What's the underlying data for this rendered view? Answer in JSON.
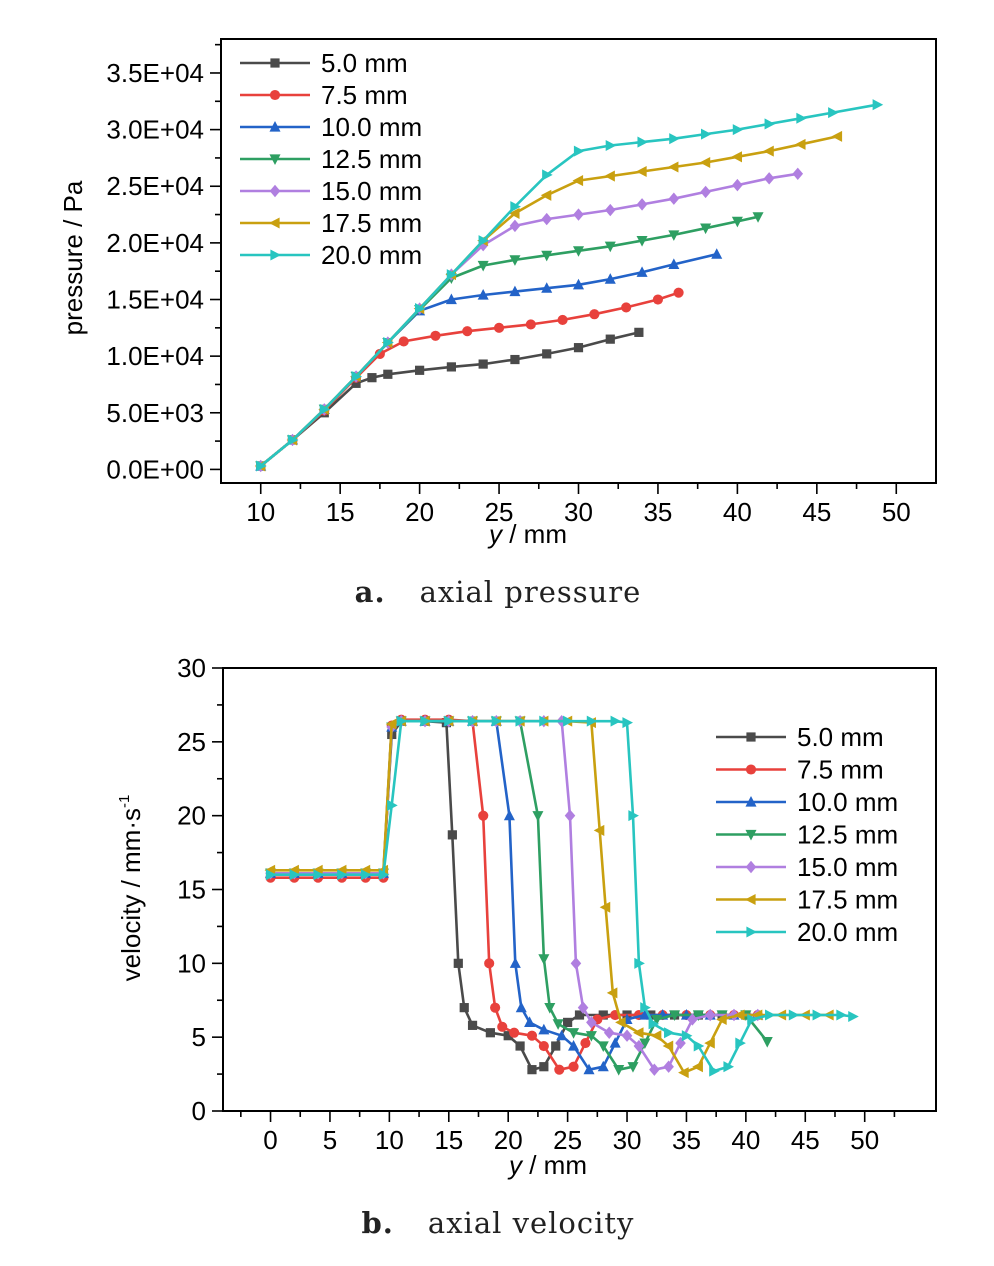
{
  "colors": [
    "#4a4a4a",
    "#e8413c",
    "#2363c8",
    "#2e9f62",
    "#b07fe0",
    "#c9a010",
    "#28c5c0"
  ],
  "legend_labels": [
    "5.0 mm",
    "7.5 mm",
    "10.0 mm",
    "12.5 mm",
    "15.0 mm",
    "17.5 mm",
    "20.0 mm"
  ],
  "captions": {
    "a": {
      "letter": "a.",
      "text": "axial pressure"
    },
    "b": {
      "letter": "b.",
      "text": "axial velocity"
    }
  },
  "chart_data": [
    {
      "type": "line",
      "xlabel_italic": "y",
      "xlabel_rest": " / mm",
      "ylabel": "pressure / Pa",
      "xlim": [
        7.5,
        52.5
      ],
      "ylim": [
        -1200,
        38000
      ],
      "xticks": [
        10,
        15,
        20,
        25,
        30,
        35,
        40,
        45,
        50
      ],
      "xtick_labels": [
        "10",
        "15",
        "20",
        "25",
        "30",
        "35",
        "40",
        "45",
        "50"
      ],
      "yticks": [
        0,
        5000,
        10000,
        15000,
        20000,
        25000,
        30000,
        35000
      ],
      "ytick_labels": [
        "0.0E+00",
        "5.0E+03",
        "1.0E+04",
        "1.5E+04",
        "2.0E+04",
        "2.5E+04",
        "3.0E+04",
        "3.5E+04"
      ],
      "legend_position": "top-left",
      "series": [
        {
          "name": "5.0 mm",
          "marker": "square",
          "x": [
            10,
            12,
            14,
            16,
            17,
            18,
            20,
            22,
            24,
            26,
            28,
            30,
            32,
            33.8
          ],
          "y": [
            300,
            2600,
            5000,
            7600,
            8100,
            8400,
            8750,
            9050,
            9300,
            9700,
            10200,
            10750,
            11500,
            12100
          ]
        },
        {
          "name": "7.5 mm",
          "marker": "circle",
          "x": [
            10,
            12,
            14,
            16,
            17.5,
            19,
            21,
            23,
            25,
            27,
            29,
            31,
            33,
            35,
            36.3
          ],
          "y": [
            300,
            2600,
            5200,
            8100,
            10200,
            11300,
            11800,
            12200,
            12500,
            12800,
            13200,
            13700,
            14300,
            15000,
            15600
          ]
        },
        {
          "name": "10.0 mm",
          "marker": "triangle-up",
          "x": [
            10,
            12,
            14,
            16,
            18,
            20,
            22,
            24,
            26,
            28,
            30,
            32,
            34,
            36,
            38.7
          ],
          "y": [
            300,
            2600,
            5300,
            8200,
            11200,
            14000,
            15000,
            15400,
            15700,
            16000,
            16300,
            16800,
            17400,
            18100,
            19000
          ]
        },
        {
          "name": "12.5 mm",
          "marker": "triangle-down",
          "x": [
            10,
            12,
            14,
            16,
            18,
            20,
            22,
            24,
            26,
            28,
            30,
            32,
            34,
            36,
            38,
            40,
            41.3
          ],
          "y": [
            300,
            2600,
            5300,
            8200,
            11200,
            14100,
            16900,
            18000,
            18500,
            18900,
            19300,
            19700,
            20200,
            20700,
            21300,
            21900,
            22300
          ]
        },
        {
          "name": "15.0 mm",
          "marker": "diamond",
          "x": [
            10,
            12,
            14,
            16,
            18,
            20,
            22,
            24,
            26,
            28,
            30,
            32,
            34,
            36,
            38,
            40,
            42,
            43.8
          ],
          "y": [
            300,
            2600,
            5300,
            8200,
            11200,
            14200,
            17200,
            19800,
            21500,
            22100,
            22500,
            22900,
            23400,
            23900,
            24500,
            25100,
            25700,
            26100
          ]
        },
        {
          "name": "17.5 mm",
          "marker": "triangle-left",
          "x": [
            10,
            12,
            14,
            16,
            18,
            20,
            22,
            24,
            26,
            28,
            30,
            32,
            34,
            36,
            38,
            40,
            42,
            44,
            46.3
          ],
          "y": [
            300,
            2600,
            5300,
            8200,
            11200,
            14200,
            17200,
            20200,
            22600,
            24200,
            25500,
            25900,
            26300,
            26700,
            27100,
            27600,
            28100,
            28700,
            29400
          ]
        },
        {
          "name": "20.0 mm",
          "marker": "triangle-right",
          "x": [
            10,
            12,
            14,
            16,
            18,
            20,
            22,
            24,
            26,
            28,
            30,
            32,
            34,
            36,
            38,
            40,
            42,
            44,
            46,
            48.8
          ],
          "y": [
            300,
            2600,
            5300,
            8200,
            11200,
            14200,
            17200,
            20200,
            23200,
            26000,
            28100,
            28600,
            28900,
            29200,
            29600,
            30000,
            30500,
            31000,
            31500,
            32200
          ]
        }
      ]
    },
    {
      "type": "line",
      "xlabel_italic": "y",
      "xlabel_rest": " / mm",
      "ylabel": "velocity / mm·s",
      "ylabel_sup": "-1",
      "xlim": [
        -4,
        56
      ],
      "ylim": [
        0,
        30
      ],
      "xticks": [
        0,
        5,
        10,
        15,
        20,
        25,
        30,
        35,
        40,
        45,
        50
      ],
      "xtick_labels": [
        "0",
        "5",
        "10",
        "15",
        "20",
        "25",
        "30",
        "35",
        "40",
        "45",
        "50"
      ],
      "yticks": [
        0,
        5,
        10,
        15,
        20,
        25,
        30
      ],
      "ytick_labels": [
        "0",
        "5",
        "10",
        "15",
        "20",
        "25",
        "30"
      ],
      "legend_position": "right",
      "series": [
        {
          "name": "5.0 mm",
          "marker": "square",
          "x": [
            0,
            2,
            4,
            6,
            8,
            9.5,
            10.2,
            11,
            13,
            14.8,
            15.3,
            15.8,
            16.3,
            17,
            18.5,
            20,
            21,
            22,
            23,
            24,
            25,
            26,
            28,
            30,
            32,
            34,
            36,
            38,
            40
          ],
          "y": [
            16.1,
            16.1,
            16.1,
            16.1,
            16.1,
            16.1,
            25.5,
            26.4,
            26.4,
            26.3,
            18.7,
            10.0,
            7.0,
            5.8,
            5.3,
            5.1,
            4.4,
            2.8,
            3.0,
            4.4,
            6.0,
            6.5,
            6.5,
            6.5,
            6.5,
            6.5,
            6.5,
            6.5,
            6.5
          ]
        },
        {
          "name": "7.5 mm",
          "marker": "circle",
          "x": [
            0,
            2,
            4,
            6,
            8,
            9.5,
            10.2,
            11,
            13,
            15,
            17,
            17.9,
            18.4,
            18.9,
            19.5,
            20.5,
            22,
            23,
            24.3,
            25.5,
            26.5,
            27.5,
            29,
            31,
            33,
            35,
            37,
            39,
            41
          ],
          "y": [
            15.8,
            15.8,
            15.8,
            15.8,
            15.8,
            15.8,
            26.1,
            26.5,
            26.5,
            26.5,
            26.4,
            20.0,
            10.0,
            7.0,
            5.7,
            5.3,
            5.1,
            4.4,
            2.8,
            3.0,
            4.6,
            6.2,
            6.5,
            6.5,
            6.5,
            6.5,
            6.5,
            6.5,
            6.5
          ]
        },
        {
          "name": "10.0 mm",
          "marker": "triangle-up",
          "x": [
            0,
            2,
            4,
            6,
            8,
            9.5,
            10.2,
            11,
            13,
            15,
            17,
            19,
            20.1,
            20.6,
            21.1,
            21.8,
            23,
            24.5,
            25.5,
            26.8,
            28,
            29,
            30,
            31.5,
            33,
            35,
            37,
            39,
            41
          ],
          "y": [
            16.1,
            16.1,
            16.1,
            16.1,
            16.1,
            16.1,
            26.0,
            26.4,
            26.4,
            26.4,
            26.4,
            26.4,
            20.0,
            10.0,
            7.0,
            6.0,
            5.5,
            5.1,
            4.4,
            2.8,
            3.0,
            4.6,
            6.2,
            6.5,
            6.5,
            6.5,
            6.5,
            6.5,
            6.5
          ]
        },
        {
          "name": "12.5 mm",
          "marker": "triangle-down",
          "x": [
            0,
            2,
            4,
            6,
            8,
            9.5,
            10.2,
            11,
            13,
            15,
            17,
            19,
            21,
            22.5,
            23,
            23.5,
            24.2,
            25.5,
            27,
            28,
            29.3,
            30.5,
            31.5,
            32.5,
            34,
            36,
            38,
            40,
            41.8
          ],
          "y": [
            16.1,
            16.1,
            16.1,
            16.1,
            16.1,
            16.1,
            26.0,
            26.4,
            26.4,
            26.4,
            26.4,
            26.4,
            26.4,
            20.0,
            10.3,
            7.0,
            5.9,
            5.3,
            5.1,
            4.4,
            2.8,
            3.0,
            4.6,
            6.2,
            6.5,
            6.5,
            6.5,
            6.5,
            4.7
          ]
        },
        {
          "name": "15.0 mm",
          "marker": "diamond",
          "x": [
            0,
            2,
            4,
            6,
            8,
            9.5,
            10.2,
            11,
            13,
            15,
            17,
            19,
            21,
            23,
            24.5,
            25.2,
            25.7,
            26.3,
            27,
            28.5,
            30,
            31,
            32.3,
            33.5,
            34.5,
            35.5,
            37,
            39,
            41
          ],
          "y": [
            16.1,
            16.1,
            16.1,
            16.1,
            16.1,
            16.1,
            26.0,
            26.4,
            26.4,
            26.4,
            26.4,
            26.4,
            26.4,
            26.4,
            26.4,
            20.0,
            10.0,
            7.0,
            6.0,
            5.3,
            5.1,
            4.4,
            2.8,
            3.0,
            4.6,
            6.2,
            6.5,
            6.5,
            6.5
          ]
        },
        {
          "name": "17.5 mm",
          "marker": "triangle-left",
          "x": [
            0,
            2,
            4,
            6,
            8,
            9.5,
            10.2,
            11,
            13,
            15,
            17,
            19,
            21,
            23,
            25,
            27,
            27.7,
            28.2,
            28.8,
            29.5,
            31,
            32.5,
            33.5,
            34.8,
            36,
            37,
            38,
            39.5,
            41,
            43,
            45,
            47
          ],
          "y": [
            16.3,
            16.3,
            16.3,
            16.3,
            16.3,
            16.3,
            26.2,
            26.4,
            26.4,
            26.4,
            26.4,
            26.4,
            26.4,
            26.4,
            26.4,
            26.3,
            19.0,
            13.8,
            8.0,
            6.0,
            5.3,
            5.1,
            4.4,
            2.6,
            3.0,
            4.6,
            6.2,
            6.5,
            6.5,
            6.5,
            6.5,
            6.5
          ]
        },
        {
          "name": "20.0 mm",
          "marker": "triangle-right",
          "x": [
            0,
            2,
            4,
            6,
            8,
            9.5,
            10.2,
            11,
            13,
            15,
            17,
            19,
            21,
            23,
            25,
            27,
            29,
            30,
            30.5,
            31,
            31.5,
            32.2,
            33.5,
            35,
            36,
            37.3,
            38.5,
            39.5,
            40.5,
            42,
            44,
            46,
            48,
            49
          ],
          "y": [
            16.0,
            16.0,
            16.0,
            16.0,
            16.0,
            16.0,
            20.7,
            26.4,
            26.4,
            26.4,
            26.4,
            26.4,
            26.4,
            26.4,
            26.4,
            26.4,
            26.4,
            26.3,
            20.0,
            10.0,
            7.0,
            5.9,
            5.3,
            5.1,
            4.4,
            2.7,
            3.0,
            4.6,
            6.2,
            6.5,
            6.5,
            6.5,
            6.5,
            6.4
          ]
        }
      ]
    }
  ]
}
